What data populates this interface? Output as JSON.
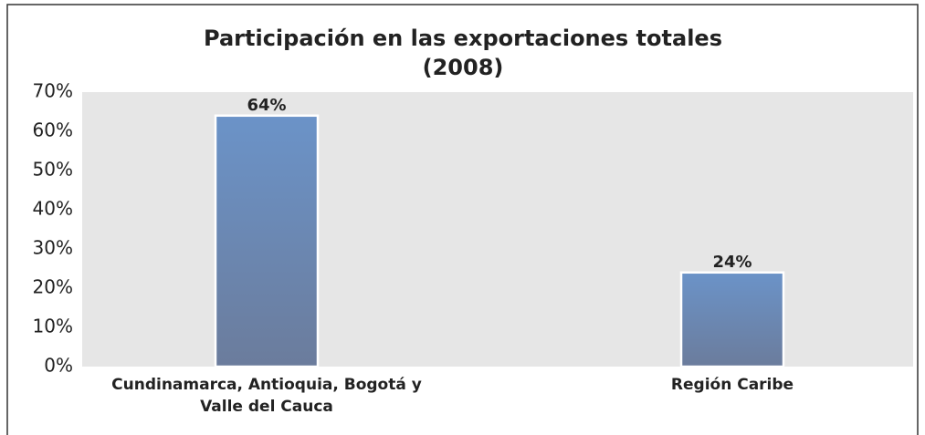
{
  "chart_data": {
    "type": "bar",
    "title": "Participación en las exportaciones totales",
    "subtitle": "(2008)",
    "categories": [
      "Cundinamarca, Antioquia, Bogotá y Valle del Cauca",
      "Región Caribe"
    ],
    "values": [
      64,
      24
    ],
    "value_labels": [
      "64%",
      "24%"
    ],
    "color": "#6a8cc0",
    "ylim": [
      0,
      70
    ],
    "yticks": [
      {
        "value": 0,
        "label": "0%"
      },
      {
        "value": 10,
        "label": "10%"
      },
      {
        "value": 20,
        "label": "20%"
      },
      {
        "value": 30,
        "label": "30%"
      },
      {
        "value": 40,
        "label": "40%"
      },
      {
        "value": 50,
        "label": "50%"
      },
      {
        "value": 60,
        "label": "60%"
      },
      {
        "value": 70,
        "label": "70%"
      }
    ],
    "grid": false
  }
}
